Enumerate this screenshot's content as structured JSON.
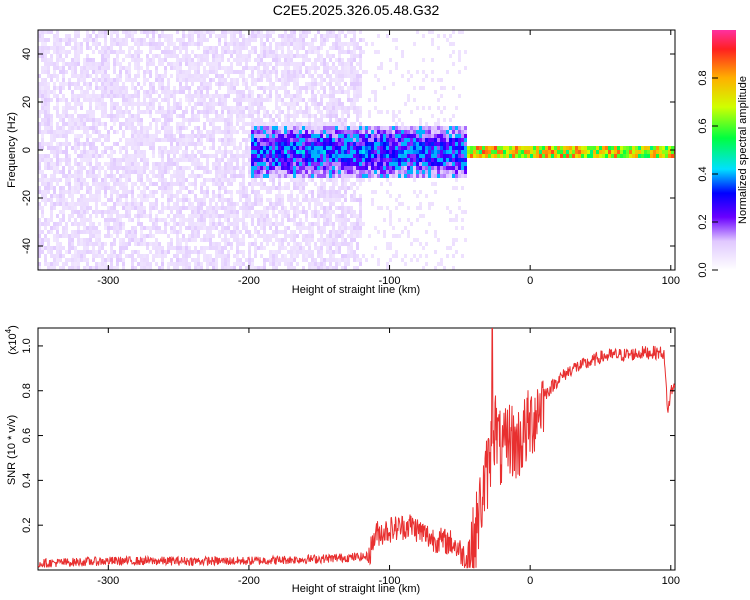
{
  "title": "C2E5.2025.326.05.48.G32",
  "chart_data": [
    {
      "type": "heatmap",
      "name": "spectrogram",
      "xlabel": "Height of straight line (km)",
      "ylabel": "Frequency (Hz)",
      "xlim": [
        -350,
        103
      ],
      "ylim": [
        -50,
        50
      ],
      "xticks": [
        -300,
        -200,
        -100,
        0,
        100
      ],
      "yticks": [
        -40,
        -20,
        0,
        20,
        40
      ],
      "colorbar": {
        "label": "Normalized spectral amplitude",
        "range": [
          0,
          1
        ],
        "ticks": [
          0.0,
          0.2,
          0.4,
          0.6,
          0.8
        ]
      },
      "features": [
        {
          "region": "noise",
          "x_range": [
            -350,
            -120
          ],
          "freq_range": [
            -50,
            50
          ],
          "amplitude": [
            0.05,
            0.2
          ]
        },
        {
          "region": "noise-sparse",
          "x_range": [
            -120,
            -45
          ],
          "freq_range": [
            -50,
            50
          ],
          "amplitude": [
            0.02,
            0.08
          ]
        },
        {
          "region": "signal-band",
          "x_range": [
            -200,
            -45
          ],
          "freq_range": [
            -10,
            10
          ],
          "amplitude": [
            0.2,
            0.45
          ]
        },
        {
          "region": "signal-line",
          "x_range": [
            -45,
            103
          ],
          "freq_range": [
            -3,
            3
          ],
          "amplitude": [
            0.5,
            0.9
          ]
        }
      ]
    },
    {
      "type": "line",
      "name": "snr",
      "xlabel": "Height of straight line (km)",
      "ylabel": "SNR (10 * v/v)",
      "y_multiplier": "(x10",
      "y_exponent": "4",
      "y_multiplier_close": ")",
      "xlim": [
        -350,
        103
      ],
      "ylim": [
        0,
        1.08
      ],
      "xticks": [
        -300,
        -200,
        -100,
        0,
        100
      ],
      "yticks": [
        0.2,
        0.4,
        0.6,
        0.8,
        1.0
      ],
      "color": "#e83030",
      "series": [
        {
          "name": "SNR",
          "x": [
            -350,
            -300,
            -250,
            -200,
            -150,
            -115,
            -110,
            -100,
            -85,
            -70,
            -55,
            -45,
            -40,
            -35,
            -30,
            -25,
            -20,
            -15,
            -10,
            -5,
            0,
            10,
            20,
            30,
            40,
            50,
            60,
            70,
            80,
            90,
            95,
            98,
            100,
            103
          ],
          "y": [
            0.03,
            0.04,
            0.04,
            0.04,
            0.05,
            0.06,
            0.16,
            0.18,
            0.2,
            0.14,
            0.12,
            0.05,
            0.12,
            0.3,
            0.45,
            0.65,
            0.5,
            0.6,
            0.55,
            0.6,
            0.65,
            0.78,
            0.85,
            0.9,
            0.92,
            0.95,
            0.96,
            0.96,
            0.97,
            0.97,
            0.97,
            0.7,
            0.8,
            0.82
          ]
        }
      ]
    }
  ]
}
